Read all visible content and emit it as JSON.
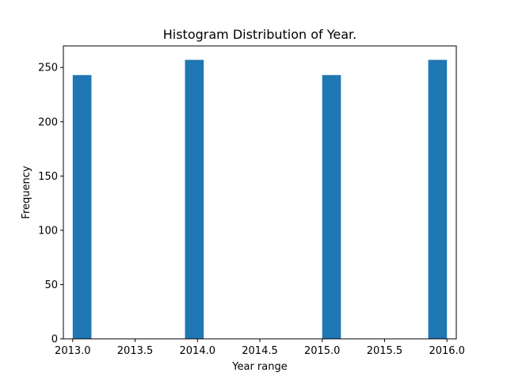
{
  "chart_data": {
    "type": "bar",
    "title": "Histogram Distribution of Year.",
    "xlabel": "Year range",
    "ylabel": "Frequency",
    "bin_width": 0.15,
    "bins": [
      {
        "start": 2013.0,
        "end": 2013.15,
        "value": 243
      },
      {
        "start": 2013.9,
        "end": 2014.05,
        "value": 257
      },
      {
        "start": 2015.0,
        "end": 2015.15,
        "value": 243
      },
      {
        "start": 2015.85,
        "end": 2016.0,
        "value": 257
      }
    ],
    "xlim": [
      2012.925,
      2016.075
    ],
    "ylim": [
      0,
      269.85
    ],
    "xticks": [
      2013.0,
      2013.5,
      2014.0,
      2014.5,
      2015.0,
      2015.5,
      2016.0
    ],
    "xtick_labels": [
      "2013.0",
      "2013.5",
      "2014.0",
      "2014.5",
      "2015.0",
      "2015.5",
      "2016.0"
    ],
    "yticks": [
      0,
      50,
      100,
      150,
      200,
      250
    ],
    "ytick_labels": [
      "0",
      "50",
      "100",
      "150",
      "200",
      "250"
    ],
    "bar_color": "#1f77b4",
    "grid": false,
    "legend": "none"
  }
}
